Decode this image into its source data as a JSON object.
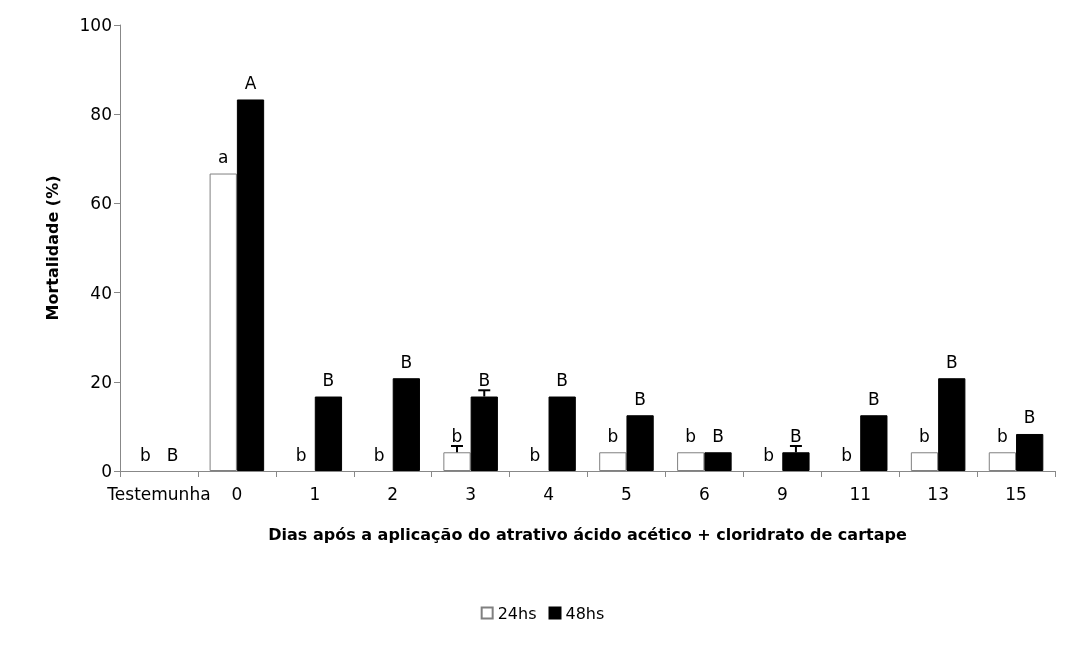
{
  "chart_data": {
    "type": "bar",
    "xlabel": "Dias após a aplicação do atrativo ácido acético + cloridrato de cartape",
    "ylabel": "Mortalidade (%)",
    "categories": [
      "Testemunha",
      "0",
      "1",
      "2",
      "3",
      "4",
      "5",
      "6",
      "9",
      "11",
      "13",
      "15"
    ],
    "series": [
      {
        "name": "24hs",
        "color": "#ffffff",
        "values": [
          0,
          66.7,
          0,
          0,
          4.2,
          0,
          4.2,
          4.2,
          0,
          0,
          4.2,
          4.2
        ],
        "errors": [
          null,
          null,
          null,
          null,
          [
            4.2,
            5.6
          ],
          null,
          null,
          null,
          null,
          null,
          null,
          null
        ],
        "value_labels": [
          "b",
          "a",
          "b",
          "b",
          "b",
          "b",
          "b",
          "b",
          "b",
          "b",
          "b",
          "b"
        ]
      },
      {
        "name": "48hs",
        "color": "#000000",
        "values": [
          0,
          83.3,
          16.7,
          20.8,
          16.7,
          16.7,
          12.5,
          4.2,
          4.2,
          12.5,
          20.8,
          8.3
        ],
        "errors": [
          null,
          null,
          null,
          null,
          [
            16.7,
            18.1
          ],
          null,
          null,
          null,
          [
            4.2,
            5.6
          ],
          null,
          null,
          null
        ],
        "value_labels": [
          "B",
          "A",
          "B",
          "B",
          "B",
          "B",
          "B",
          "B",
          "B",
          "B",
          "B",
          "B"
        ]
      }
    ],
    "ylim": [
      0,
      100
    ],
    "yticks": [
      0,
      20,
      40,
      60,
      80,
      100
    ],
    "grid": false,
    "legend": "bottom"
  }
}
